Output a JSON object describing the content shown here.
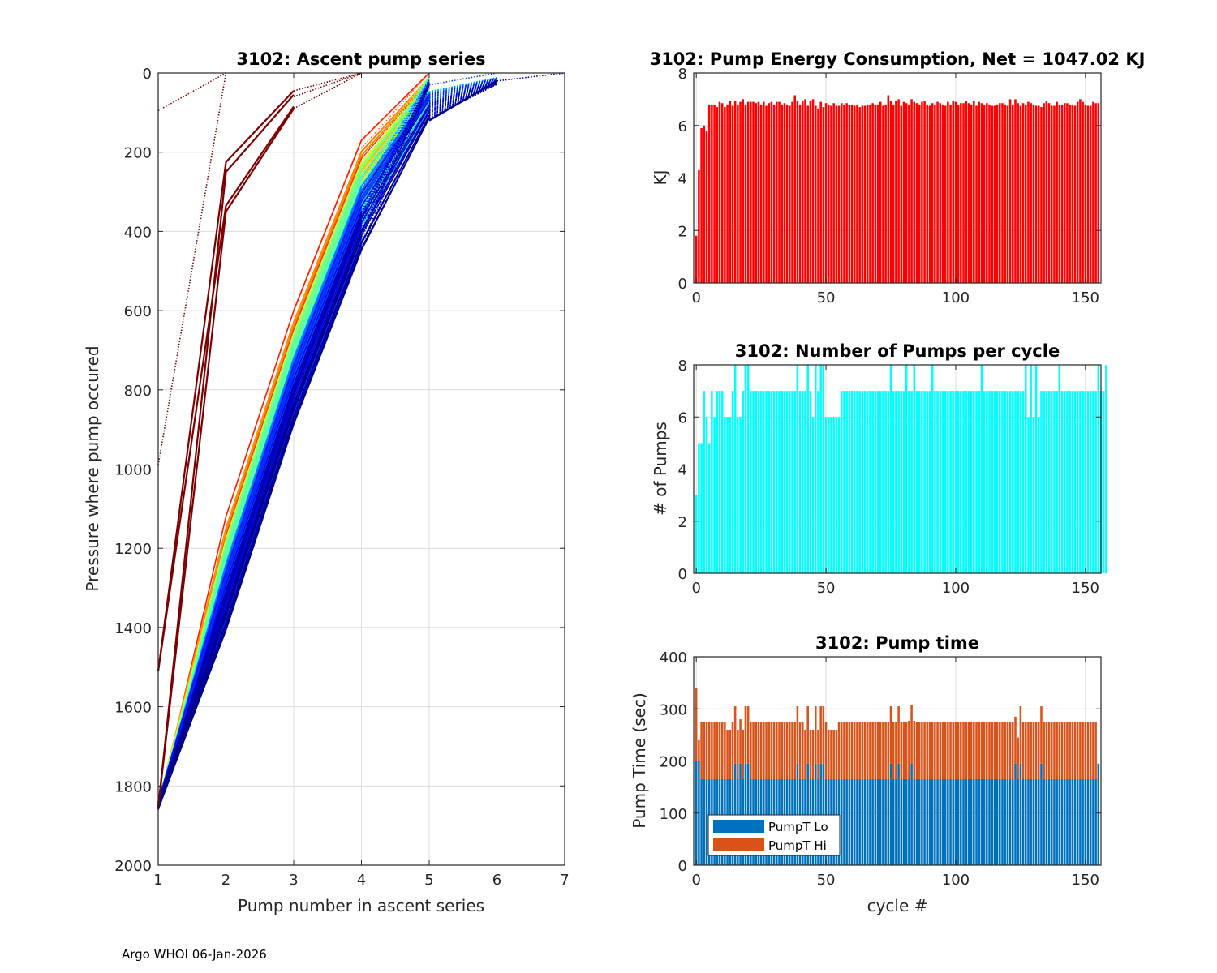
{
  "footer": "Argo WHOI 06-Jan-2026",
  "chart_data": [
    {
      "id": "ascent",
      "type": "line",
      "title": "3102: Ascent pump series",
      "xlabel": "Pump number in ascent series",
      "ylabel": "Pressure where pump occured",
      "xlim": [
        1,
        7
      ],
      "ylim": [
        0,
        2000
      ],
      "y_reversed": true,
      "grid": true,
      "xticks": [
        "1",
        "2",
        "3",
        "4",
        "5",
        "6",
        "7"
      ],
      "yticks": [
        "0",
        "200",
        "400",
        "600",
        "800",
        "1000",
        "1200",
        "1400",
        "1600",
        "1800",
        "2000"
      ],
      "colormap": "jet",
      "series_groups": [
        {
          "name": "early-dark-red",
          "color": "#7f0000",
          "count": 4,
          "solid_x": [
            1,
            2,
            3
          ],
          "solid_y_range": [
            [
              1510,
              1855
            ],
            [
              225,
              345
            ],
            [
              45,
              90
            ]
          ],
          "dotted_x": [
            3,
            4
          ],
          "dotted_y": [
            [
              60,
              0
            ]
          ]
        },
        {
          "name": "cycle1-dotted",
          "color": "#7f0000",
          "x": [
            1,
            2
          ],
          "y": [
            990,
            0
          ],
          "style": "dotted"
        },
        {
          "name": "cycle1-dotted-b",
          "color": "#7f0000",
          "x": [
            1,
            2
          ],
          "y": [
            95,
            0
          ],
          "style": "dotted"
        },
        {
          "name": "main-bundle",
          "count": 150,
          "x": [
            1,
            2,
            3,
            4,
            5,
            6
          ],
          "y_typical": [
            1855,
            1250,
            720,
            260,
            60,
            5
          ],
          "y_spread": [
            [
              1840,
              1860
            ],
            [
              1120,
              1420
            ],
            [
              600,
              900
            ],
            [
              170,
              460
            ],
            [
              0,
              120
            ],
            [
              0,
              30
            ]
          ]
        },
        {
          "name": "late-dotted-7",
          "color": "#00008f",
          "x": [
            6,
            7
          ],
          "y": [
            20,
            0
          ],
          "style": "dotted"
        }
      ]
    },
    {
      "id": "energy",
      "type": "bar",
      "title": "3102: Pump Energy Consumption,  Net = 1047.02 KJ",
      "xlabel": "",
      "ylabel": "KJ",
      "xlim": [
        -1,
        156
      ],
      "ylim": [
        0,
        8
      ],
      "grid": true,
      "xticks": [
        "0",
        "50",
        "100",
        "150"
      ],
      "yticks": [
        "0",
        "2",
        "4",
        "6",
        "8"
      ],
      "color": "#ff0000",
      "x_start": 0,
      "values": [
        1.8,
        4.3,
        5.9,
        6.0,
        5.8,
        6.8,
        6.8,
        6.8,
        6.7,
        6.9,
        6.85,
        6.7,
        6.8,
        6.95,
        6.75,
        6.95,
        6.8,
        6.9,
        7.0,
        6.8,
        6.9,
        6.9,
        6.9,
        6.85,
        6.9,
        6.8,
        6.9,
        6.75,
        6.85,
        6.9,
        6.8,
        6.9,
        6.9,
        6.8,
        6.85,
        6.8,
        6.75,
        6.9,
        7.15,
        6.95,
        6.8,
        6.95,
        7.0,
        6.75,
        6.95,
        7.0,
        6.75,
        6.65,
        6.9,
        6.7,
        6.85,
        6.8,
        6.75,
        6.85,
        6.75,
        6.75,
        6.85,
        6.8,
        6.85,
        6.8,
        6.8,
        6.75,
        6.8,
        6.7,
        6.75,
        6.75,
        6.8,
        6.8,
        6.85,
        6.8,
        6.8,
        6.9,
        6.75,
        6.8,
        7.15,
        6.95,
        6.8,
        6.95,
        7.0,
        6.75,
        6.9,
        6.85,
        6.8,
        7.0,
        6.9,
        6.85,
        6.8,
        6.9,
        6.95,
        6.8,
        6.75,
        6.85,
        6.8,
        6.9,
        6.85,
        6.8,
        6.75,
        6.9,
        6.8,
        6.95,
        6.9,
        6.8,
        6.85,
        6.85,
        6.95,
        6.85,
        6.8,
        6.95,
        6.75,
        6.9,
        6.85,
        6.8,
        6.85,
        6.8,
        6.75,
        6.75,
        6.8,
        6.85,
        6.85,
        6.8,
        6.75,
        7.0,
        6.8,
        7.0,
        6.85,
        6.75,
        6.85,
        6.8,
        6.9,
        6.85,
        6.8,
        6.75,
        6.75,
        6.7,
        6.85,
        6.95,
        6.85,
        6.75,
        6.75,
        6.9,
        6.8,
        6.8,
        6.85,
        6.85,
        6.8,
        6.8,
        6.75,
        6.9,
        7.0,
        6.9,
        6.8,
        6.75,
        6.75,
        6.9,
        6.85,
        6.85
      ]
    },
    {
      "id": "pumps",
      "type": "bar",
      "title": "3102: Number of Pumps per cycle",
      "xlabel": "",
      "ylabel": "# of Pumps",
      "xlim": [
        -1,
        156
      ],
      "ylim": [
        0,
        8
      ],
      "grid": true,
      "xticks": [
        "0",
        "50",
        "100",
        "150"
      ],
      "yticks": [
        "0",
        "2",
        "4",
        "6",
        "8"
      ],
      "color": "#00ffff",
      "x_start": 0,
      "values": [
        3,
        5,
        5,
        7,
        6,
        5,
        7,
        6,
        7,
        7,
        7,
        6,
        6,
        6,
        7,
        8,
        6,
        6,
        7,
        8,
        8,
        7,
        7,
        7,
        7,
        7,
        7,
        7,
        7,
        7,
        7,
        7,
        7,
        7,
        7,
        7,
        7,
        7,
        7,
        8,
        7,
        7,
        7,
        8,
        7,
        6,
        8,
        7,
        8,
        8,
        6,
        6,
        6,
        6,
        6,
        6,
        7,
        7,
        7,
        7,
        7,
        7,
        7,
        7,
        7,
        7,
        7,
        7,
        7,
        7,
        7,
        7,
        7,
        7,
        7,
        8,
        7,
        7,
        7,
        7,
        7,
        8,
        7,
        7,
        8,
        7,
        7,
        7,
        7,
        7,
        7,
        8,
        7,
        7,
        7,
        7,
        7,
        7,
        7,
        7,
        7,
        7,
        7,
        7,
        7,
        7,
        7,
        7,
        7,
        7,
        8,
        7,
        7,
        7,
        7,
        7,
        7,
        7,
        7,
        7,
        7,
        7,
        7,
        7,
        7,
        7,
        7,
        8,
        6,
        8,
        6,
        8,
        6,
        7,
        7,
        7,
        7,
        7,
        7,
        7,
        8,
        7,
        7,
        7,
        7,
        7,
        7,
        7,
        7,
        7,
        7,
        7,
        7,
        7,
        7,
        8,
        7,
        7,
        8
      ]
    },
    {
      "id": "pumptime",
      "type": "bar",
      "stacked": true,
      "title": "3102: Pump time",
      "xlabel": "cycle #",
      "ylabel": "Pump Time (sec)",
      "xlim": [
        -1,
        156
      ],
      "ylim": [
        0,
        400
      ],
      "grid": true,
      "xticks": [
        "0",
        "50",
        "100",
        "150"
      ],
      "yticks": [
        "0",
        "100",
        "200",
        "300",
        "400"
      ],
      "legend": {
        "placement": "bottom-left",
        "entries": [
          "PumpT Lo",
          "PumpT Hi"
        ]
      },
      "x_start": 0,
      "series": [
        {
          "name": "PumpT Lo",
          "color": "#0072bd",
          "values": [
            200,
            200,
            165,
            165,
            165,
            165,
            165,
            165,
            165,
            165,
            165,
            165,
            165,
            165,
            165,
            195,
            165,
            195,
            165,
            195,
            195,
            165,
            165,
            165,
            165,
            165,
            165,
            165,
            165,
            165,
            165,
            165,
            165,
            165,
            165,
            165,
            165,
            165,
            165,
            195,
            165,
            165,
            165,
            195,
            165,
            165,
            195,
            165,
            195,
            195,
            165,
            165,
            165,
            165,
            165,
            165,
            165,
            165,
            165,
            165,
            165,
            165,
            165,
            165,
            165,
            165,
            165,
            165,
            165,
            165,
            165,
            165,
            165,
            165,
            165,
            195,
            165,
            165,
            195,
            165,
            165,
            165,
            165,
            195,
            165,
            165,
            165,
            165,
            165,
            165,
            165,
            165,
            165,
            165,
            165,
            165,
            165,
            165,
            165,
            165,
            165,
            165,
            165,
            165,
            165,
            165,
            165,
            165,
            165,
            165,
            165,
            165,
            165,
            165,
            165,
            165,
            165,
            165,
            165,
            165,
            165,
            165,
            165,
            195,
            165,
            195,
            165,
            165,
            165,
            165,
            165,
            165,
            165,
            195,
            165,
            165,
            165,
            165,
            165,
            165,
            165,
            165,
            165,
            165,
            165,
            165,
            165,
            165,
            165,
            165,
            165,
            165,
            165,
            165,
            165,
            195
          ]
        },
        {
          "name": "PumpT Hi",
          "color": "#d95319",
          "values": [
            140,
            40,
            110,
            110,
            110,
            110,
            110,
            110,
            110,
            110,
            110,
            110,
            95,
            95,
            110,
            110,
            95,
            85,
            95,
            110,
            110,
            110,
            110,
            110,
            110,
            110,
            110,
            110,
            110,
            110,
            110,
            110,
            110,
            110,
            110,
            110,
            110,
            110,
            110,
            110,
            110,
            110,
            95,
            110,
            95,
            95,
            110,
            95,
            110,
            110,
            110,
            95,
            95,
            95,
            95,
            110,
            110,
            110,
            110,
            110,
            110,
            110,
            110,
            110,
            110,
            110,
            110,
            110,
            110,
            110,
            110,
            110,
            110,
            110,
            110,
            110,
            110,
            110,
            110,
            110,
            110,
            110,
            112,
            112,
            112,
            110,
            110,
            110,
            110,
            110,
            110,
            110,
            110,
            110,
            110,
            110,
            110,
            110,
            110,
            110,
            110,
            110,
            110,
            110,
            110,
            110,
            110,
            110,
            110,
            110,
            110,
            110,
            110,
            110,
            110,
            110,
            110,
            110,
            110,
            110,
            110,
            110,
            110,
            90,
            80,
            110,
            110,
            110,
            110,
            110,
            110,
            110,
            110,
            110,
            110,
            110,
            110,
            110,
            110,
            110,
            110,
            110,
            110,
            110,
            110,
            110,
            110,
            110,
            110,
            110,
            110,
            110,
            110,
            110,
            110
          ]
        }
      ]
    }
  ]
}
